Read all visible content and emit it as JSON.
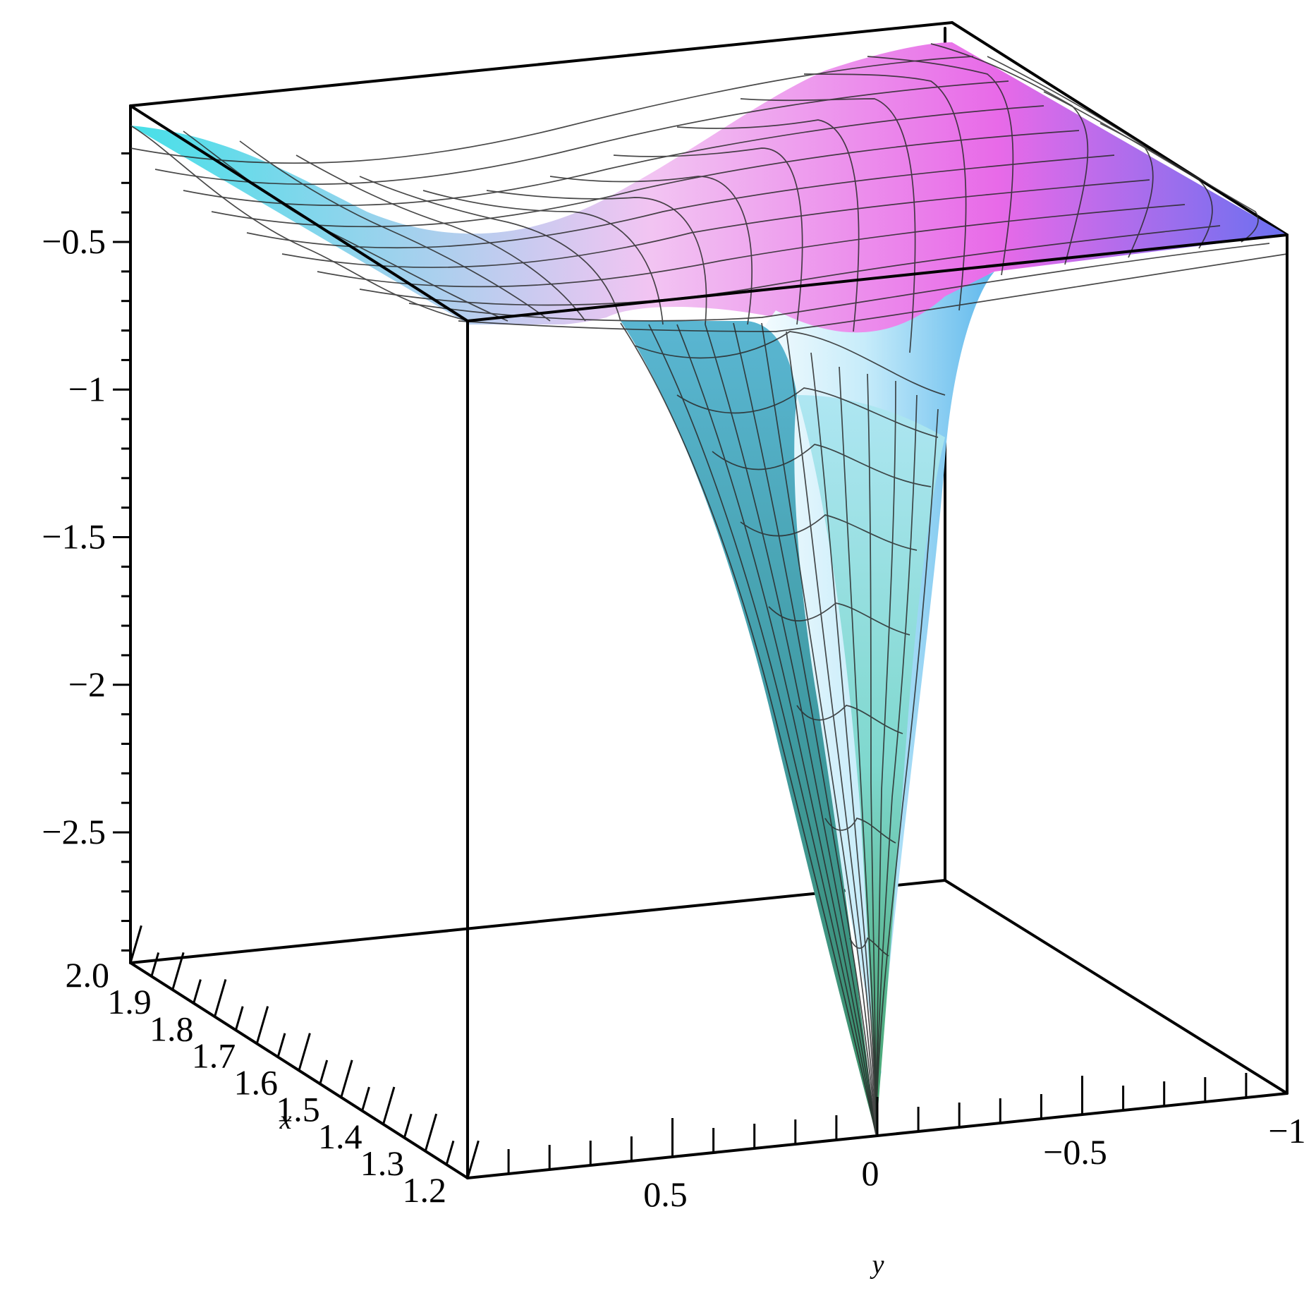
{
  "chart_data": {
    "type": "surface3d",
    "title": "",
    "x_axis": {
      "label": "x",
      "range": [
        1.2,
        2.0
      ],
      "ticks": [
        "1.2",
        "1.3",
        "1.4",
        "1.5",
        "1.6",
        "1.7",
        "1.8",
        "1.9",
        "2.0"
      ]
    },
    "y_axis": {
      "label": "y",
      "range": [
        -1,
        1
      ],
      "ticks": [
        "0.5",
        "0",
        "−0.5",
        "−1"
      ]
    },
    "z_axis": {
      "label": "",
      "range": [
        -3.0,
        -0.2
      ],
      "ticks": [
        "−0.5",
        "−1",
        "−1.5",
        "−2",
        "−2.5"
      ]
    },
    "surface_description_values": {
      "z_plateau": -0.6,
      "z_min": -2.95,
      "z_min_at": {
        "x": 1.2,
        "y": 0
      }
    },
    "colors": {
      "cyan": "#46e0e8",
      "magenta": "#e860ea",
      "blue": "#6a74f2",
      "green": "#3fa062",
      "white": "#ffffff"
    },
    "grid": false,
    "legend": "none"
  }
}
